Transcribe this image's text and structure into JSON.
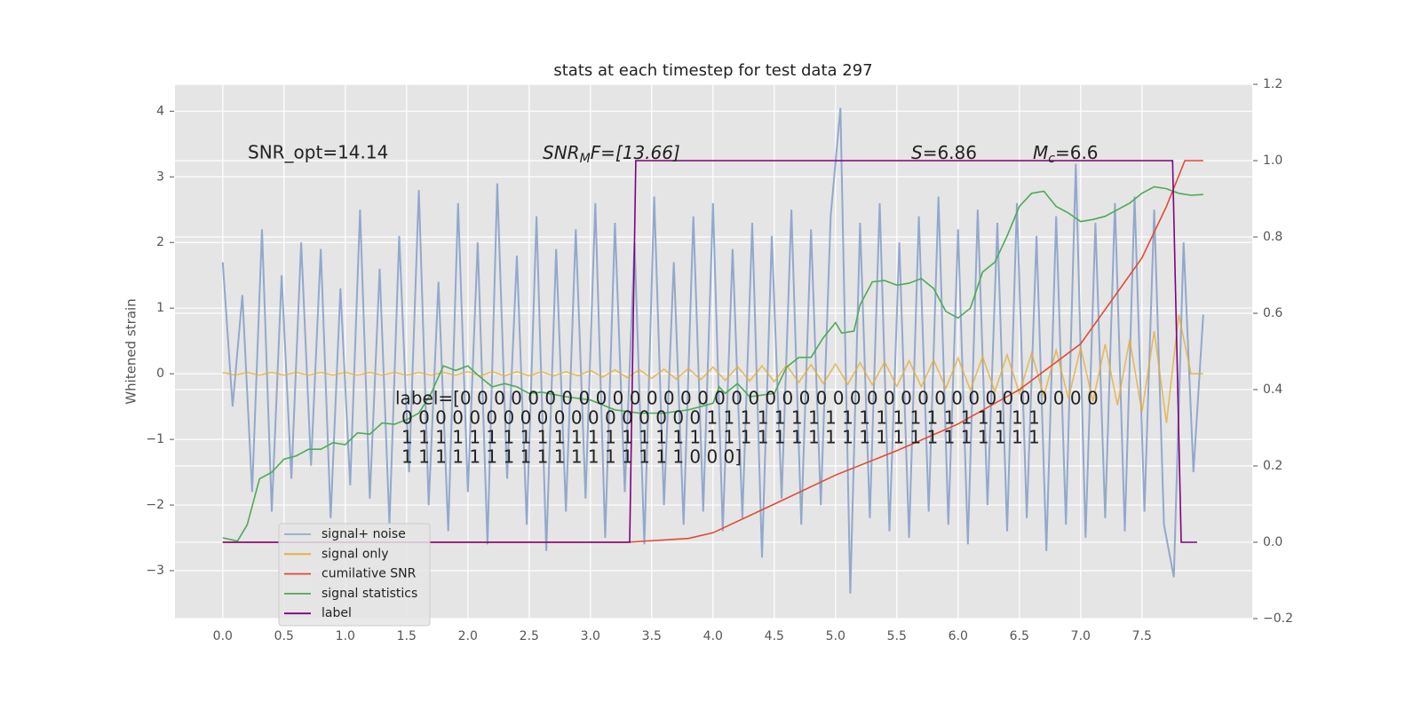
{
  "chart_data": {
    "type": "line",
    "title": "stats at each timestep for test data 297",
    "y_label": "Whitened strain",
    "xlim": [
      -0.39,
      8.4
    ],
    "xticks": [
      {
        "value": 0,
        "label": "0.0"
      },
      0.5,
      {
        "value": 1,
        "label": "1.0"
      },
      1.5,
      {
        "value": 2,
        "label": "2.0"
      },
      2.5,
      {
        "value": 3,
        "label": "3.0"
      },
      3.5,
      {
        "value": 4,
        "label": "4.0"
      },
      4.5,
      {
        "value": 5,
        "label": "5.0"
      },
      5.5,
      {
        "value": 6,
        "label": "6.0"
      },
      6.5,
      {
        "value": 7,
        "label": "7.0"
      },
      7.5
    ],
    "ylim": [
      -3.73,
      4.41
    ],
    "yticks": [
      {
        "value": -3,
        "label": "−3"
      },
      {
        "value": -2,
        "label": "−2"
      },
      {
        "value": -1,
        "label": "−1"
      },
      0,
      1,
      2,
      3,
      4
    ],
    "y2lim": [
      -0.2,
      1.2
    ],
    "y2ticks": [
      {
        "value": -0.2,
        "label": "−0.2"
      },
      {
        "value": 0,
        "label": "0.0"
      },
      0.2,
      0.4,
      0.6,
      0.8,
      {
        "value": 1,
        "label": "1.0"
      },
      1.2
    ],
    "grid": true,
    "legend": "lower left",
    "annotations": [
      {
        "text": "SNR_opt=14.14"
      },
      {
        "main": "SNR",
        "sub": "M",
        "rest": "F=[13.66]"
      },
      {
        "main": "S",
        "rest": "=6.86"
      },
      {
        "main": "M",
        "sub": "c",
        "rest": "=6.6"
      }
    ],
    "label_text": [
      "label=[0 0 0 0 0 0 0 0 0 0 0 0 0 0 0 0 0 0 0 0 0 0 0 0 0 0 0 0 0 0 0 0 0 0 0 0 0 0",
      "0 0 0 0 0 0 0 0 0 0 0 0 0 0 0 0 0 0 1 1 1 1 1 1 1 1 1 1 1 1 1 1 1 1 1 1 1 1",
      "1 1 1 1 1 1 1 1 1 1 1 1 1 1 1 1 1 1 1 1 1 1 1 1 1 1 1 1 1 1 1 1 1 1 1 1 1 1",
      "1 1 1 1 1 1 1 1 1 1 1 1 1 1 1 1 1 0 0 0]"
    ],
    "series": [
      {
        "name": "signal+ noise",
        "color": "#92a8cd",
        "axis": "y",
        "x": [
          0,
          0.08,
          0.16,
          0.24,
          0.32,
          0.4,
          0.48,
          0.56,
          0.64,
          0.72,
          0.8,
          0.88,
          0.96,
          1.04,
          1.12,
          1.2,
          1.28,
          1.36,
          1.44,
          1.52,
          1.6,
          1.68,
          1.76,
          1.84,
          1.92,
          2,
          2.08,
          2.16,
          2.24,
          2.32,
          2.4,
          2.48,
          2.56,
          2.64,
          2.72,
          2.8,
          2.88,
          2.96,
          3.04,
          3.12,
          3.2,
          3.28,
          3.36,
          3.44,
          3.52,
          3.6,
          3.68,
          3.76,
          3.84,
          3.92,
          4,
          4.08,
          4.16,
          4.24,
          4.32,
          4.4,
          4.48,
          4.56,
          4.64,
          4.72,
          4.8,
          4.88,
          4.96,
          5.04,
          5.12,
          5.2,
          5.28,
          5.36,
          5.44,
          5.52,
          5.6,
          5.68,
          5.76,
          5.84,
          5.92,
          6,
          6.08,
          6.16,
          6.24,
          6.32,
          6.4,
          6.48,
          6.56,
          6.64,
          6.72,
          6.8,
          6.88,
          6.96,
          7.04,
          7.12,
          7.2,
          7.28,
          7.36,
          7.44,
          7.52,
          7.6,
          7.68,
          7.76,
          7.84,
          7.92,
          8
        ],
        "values": [
          1.7,
          -0.5,
          1.2,
          -1.8,
          2.2,
          -2.1,
          1.5,
          -1.6,
          2.0,
          -1.4,
          1.9,
          -2.2,
          1.3,
          -1.7,
          2.5,
          -1.9,
          1.6,
          -2.3,
          2.1,
          -1.5,
          2.8,
          -2.0,
          1.4,
          -2.4,
          2.6,
          -1.8,
          2.0,
          -2.6,
          2.9,
          -1.6,
          1.8,
          -2.3,
          2.4,
          -2.7,
          1.9,
          -2.1,
          2.2,
          -1.9,
          2.6,
          -2.5,
          2.3,
          -1.8,
          2.0,
          -2.6,
          2.7,
          -2.0,
          1.7,
          -2.3,
          2.4,
          -2.1,
          2.6,
          -2.4,
          1.9,
          -2.2,
          2.3,
          -2.8,
          2.1,
          -1.9,
          2.5,
          -2.3,
          2.2,
          -2.0,
          2.4,
          4.05,
          -3.35,
          2.3,
          -2.2,
          2.6,
          -2.4,
          2.0,
          -2.5,
          2.4,
          -2.1,
          2.7,
          -2.3,
          2.2,
          -2.6,
          2.5,
          -2.0,
          2.3,
          -2.4,
          2.6,
          -2.2,
          2.1,
          -2.7,
          2.4,
          -2.3,
          3.2,
          -2.5,
          2.3,
          -2.2,
          2.6,
          -2.4,
          2.7,
          -2.1,
          2.5,
          -2.3,
          -3.1,
          2.0,
          -1.5,
          0.9
        ]
      },
      {
        "name": "signal only",
        "color": "#e5ae38",
        "axis": "y",
        "x": [
          0,
          0.1,
          0.2,
          0.3,
          0.4,
          0.5,
          0.6,
          0.7,
          0.8,
          0.9,
          1,
          1.1,
          1.2,
          1.3,
          1.4,
          1.5,
          1.6,
          1.7,
          1.8,
          1.9,
          2,
          2.1,
          2.2,
          2.3,
          2.4,
          2.5,
          2.6,
          2.7,
          2.8,
          2.9,
          3,
          3.1,
          3.2,
          3.3,
          3.4,
          3.5,
          3.6,
          3.7,
          3.8,
          3.9,
          4,
          4.1,
          4.2,
          4.3,
          4.4,
          4.5,
          4.6,
          4.7,
          4.8,
          4.9,
          5,
          5.1,
          5.2,
          5.3,
          5.4,
          5.5,
          5.6,
          5.7,
          5.8,
          5.9,
          6,
          6.1,
          6.2,
          6.3,
          6.4,
          6.5,
          6.6,
          6.7,
          6.8,
          6.9,
          7,
          7.1,
          7.2,
          7.3,
          7.4,
          7.5,
          7.6,
          7.7,
          7.8,
          7.9,
          8
        ],
        "values": [
          0.02,
          -0.02,
          0.02,
          -0.02,
          0.02,
          -0.02,
          0.02,
          -0.02,
          0.02,
          -0.02,
          0.02,
          -0.02,
          0.02,
          -0.02,
          0.02,
          -0.02,
          0.02,
          -0.02,
          0.02,
          -0.02,
          0.03,
          -0.03,
          0.03,
          -0.03,
          0.03,
          -0.03,
          0.03,
          -0.03,
          0.03,
          -0.03,
          0.05,
          -0.05,
          0.06,
          -0.06,
          0.06,
          -0.07,
          0.07,
          -0.08,
          0.08,
          -0.09,
          0.1,
          -0.1,
          0.11,
          -0.11,
          0.12,
          -0.12,
          0.13,
          -0.13,
          0.14,
          -0.15,
          0.15,
          -0.16,
          0.17,
          -0.17,
          0.18,
          -0.19,
          0.2,
          -0.2,
          0.21,
          -0.22,
          0.24,
          -0.25,
          0.26,
          -0.27,
          0.29,
          -0.3,
          0.32,
          -0.34,
          0.36,
          -0.38,
          0.4,
          -0.42,
          0.45,
          -0.48,
          0.52,
          -0.58,
          0.65,
          -0.75,
          0.9,
          0,
          0
        ]
      },
      {
        "name": "cumilative SNR",
        "color": "#e24a33",
        "axis": "y2",
        "x": [
          0,
          3.3,
          3.8,
          4.0,
          4.5,
          5.0,
          5.5,
          6.0,
          6.5,
          7.0,
          7.5,
          7.7,
          7.85,
          8.0
        ],
        "values": [
          0,
          0,
          0.01,
          0.025,
          0.1,
          0.176,
          0.24,
          0.31,
          0.4,
          0.52,
          0.745,
          0.88,
          1.0,
          1.0
        ]
      },
      {
        "name": "signal statistics",
        "color": "#4daa57",
        "axis": "y",
        "x": [
          0,
          0.12,
          0.2,
          0.3,
          0.4,
          0.5,
          0.6,
          0.7,
          0.8,
          0.9,
          1.0,
          1.1,
          1.2,
          1.3,
          1.4,
          1.5,
          1.6,
          1.7,
          1.8,
          1.9,
          2.0,
          2.1,
          2.2,
          2.3,
          2.4,
          2.5,
          2.6,
          2.8,
          3.0,
          3.2,
          3.4,
          3.6,
          3.8,
          3.9,
          4.0,
          4.05,
          4.1,
          4.2,
          4.3,
          4.5,
          4.6,
          4.7,
          4.8,
          4.9,
          5.0,
          5.05,
          5.15,
          5.2,
          5.3,
          5.4,
          5.5,
          5.6,
          5.7,
          5.8,
          5.9,
          6.0,
          6.1,
          6.2,
          6.3,
          6.4,
          6.5,
          6.6,
          6.7,
          6.8,
          6.9,
          7.0,
          7.1,
          7.2,
          7.3,
          7.4,
          7.5,
          7.6,
          7.7,
          7.8,
          7.9,
          8.0
        ],
        "values": [
          -2.5,
          -2.55,
          -2.3,
          -1.6,
          -1.5,
          -1.3,
          -1.25,
          -1.15,
          -1.15,
          -1.05,
          -1.08,
          -0.9,
          -0.92,
          -0.75,
          -0.77,
          -0.7,
          -0.6,
          -0.3,
          0.12,
          0.05,
          0.12,
          -0.05,
          -0.2,
          -0.15,
          -0.2,
          -0.3,
          -0.28,
          -0.35,
          -0.4,
          -0.55,
          -0.6,
          -0.6,
          -0.55,
          -0.5,
          -0.45,
          -0.2,
          -0.3,
          -0.15,
          -0.35,
          -0.3,
          0.1,
          0.25,
          0.25,
          0.55,
          0.78,
          0.62,
          0.65,
          1.05,
          1.4,
          1.42,
          1.35,
          1.38,
          1.45,
          1.3,
          0.95,
          0.85,
          1.0,
          1.55,
          1.7,
          2.1,
          2.55,
          2.75,
          2.78,
          2.55,
          2.45,
          2.32,
          2.35,
          2.4,
          2.5,
          2.6,
          2.75,
          2.85,
          2.82,
          2.75,
          2.72,
          2.73
        ]
      },
      {
        "name": "label",
        "color": "#800080",
        "axis": "y2",
        "x": [
          0,
          3.32,
          3.37,
          7.75,
          7.82,
          7.95
        ],
        "values": [
          0,
          0,
          1,
          1,
          0,
          0
        ]
      }
    ]
  }
}
